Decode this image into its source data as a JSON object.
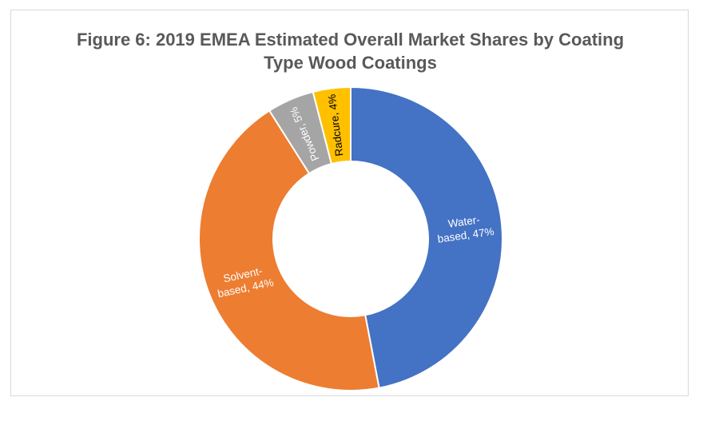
{
  "chart_data": {
    "type": "pie",
    "title_line1": "Figure 6: 2019 EMEA Estimated Overall Market Shares by Coating",
    "title_line2": "Type Wood Coatings",
    "slices": [
      {
        "label_line1": "Water-",
        "label_line2": "based, 47%",
        "name": "Water-based",
        "value": 47,
        "color": "#4472c4",
        "label_color": "#ffffff",
        "rotated": false
      },
      {
        "label_line1": "Solvent-",
        "label_line2": "based, 44%",
        "name": "Solvent-based",
        "value": 44,
        "color": "#ed7d31",
        "label_color": "#ffffff",
        "rotated": false
      },
      {
        "label_line1": "Powder, 5%",
        "label_line2": "",
        "name": "Powder",
        "value": 5,
        "color": "#a5a5a5",
        "label_color": "#ffffff",
        "rotated": true
      },
      {
        "label_line1": "Radcure, 4%",
        "label_line2": "",
        "name": "Radcure",
        "value": 4,
        "color": "#ffc000",
        "label_color": "#000000",
        "rotated": true
      }
    ],
    "donut": true,
    "legend": "none"
  }
}
